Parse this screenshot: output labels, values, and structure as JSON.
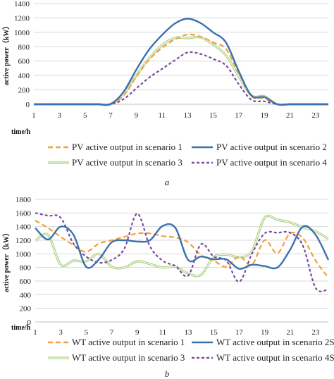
{
  "chart_data": [
    {
      "type": "line",
      "caption": "a",
      "xlabel": "time/h",
      "ylabel": "active power（kW）",
      "xlim": [
        1,
        24
      ],
      "ylim": [
        0,
        1400
      ],
      "x_ticks": [
        1,
        3,
        5,
        7,
        9,
        11,
        13,
        15,
        17,
        19,
        21,
        23
      ],
      "y_ticks": [
        0,
        200,
        400,
        600,
        800,
        1000,
        1200,
        1400
      ],
      "x": [
        1,
        2,
        3,
        4,
        5,
        6,
        7,
        8,
        9,
        10,
        11,
        12,
        13,
        14,
        15,
        16,
        17,
        18,
        19,
        20,
        21,
        22,
        23,
        24
      ],
      "series": [
        {
          "name": "PV active output in scenario 1",
          "color": "#f0a040",
          "dash": "7,4",
          "values": [
            0,
            0,
            0,
            0,
            0,
            0,
            0,
            120,
            380,
            620,
            780,
            900,
            970,
            940,
            860,
            770,
            430,
            110,
            80,
            0,
            0,
            0,
            0,
            0
          ]
        },
        {
          "name": "PV active output in scenario 2",
          "color": "#3a72b0",
          "dash": "",
          "values": [
            0,
            0,
            0,
            0,
            0,
            0,
            5,
            170,
            480,
            760,
            960,
            1120,
            1190,
            1130,
            1000,
            860,
            460,
            120,
            100,
            0,
            0,
            0,
            0,
            0
          ]
        },
        {
          "name": "PV active output in scenario 3",
          "color": "#a6cc7a",
          "dash": "",
          "values": [
            0,
            0,
            0,
            0,
            0,
            0,
            0,
            140,
            400,
            640,
            820,
            920,
            920,
            930,
            830,
            680,
            390,
            120,
            110,
            0,
            0,
            0,
            0,
            0
          ]
        },
        {
          "name": "PV active output in scenario 4",
          "color": "#7a4b9c",
          "dash": "4,3",
          "values": [
            0,
            0,
            0,
            0,
            0,
            0,
            0,
            70,
            220,
            370,
            490,
            610,
            720,
            700,
            630,
            540,
            280,
            60,
            40,
            0,
            0,
            0,
            0,
            0
          ]
        }
      ]
    },
    {
      "type": "line",
      "caption": "b",
      "xlabel": "time/h",
      "ylabel": "active power（kW）",
      "xlim": [
        1,
        24
      ],
      "ylim": [
        0,
        1800
      ],
      "x_ticks": [
        1,
        3,
        5,
        7,
        9,
        11,
        13,
        15,
        17,
        19,
        21,
        23
      ],
      "y_ticks": [
        0,
        200,
        400,
        600,
        800,
        1000,
        1200,
        1400,
        1600,
        1800
      ],
      "x": [
        1,
        2,
        3,
        4,
        5,
        6,
        7,
        8,
        9,
        10,
        11,
        12,
        13,
        14,
        15,
        16,
        17,
        18,
        19,
        20,
        21,
        22,
        23,
        24
      ],
      "series": [
        {
          "name": "WT active output in scenario 1",
          "color": "#f0a040",
          "dash": "7,4",
          "values": [
            1490,
            1380,
            1250,
            1130,
            1030,
            1150,
            1200,
            1250,
            1300,
            1300,
            1260,
            1240,
            1170,
            980,
            900,
            810,
            960,
            840,
            1200,
            1010,
            1300,
            1230,
            900,
            650
          ]
        },
        {
          "name": "WT active output in scenario 2S",
          "color": "#3a72b0",
          "dash": "",
          "values": [
            1380,
            1210,
            1400,
            1280,
            810,
            920,
            1170,
            1200,
            1180,
            1200,
            1410,
            1380,
            910,
            960,
            920,
            920,
            780,
            840,
            820,
            800,
            1060,
            1400,
            1280,
            910
          ]
        },
        {
          "name": "WT active output in scenario 3",
          "color": "#a6cc7a",
          "dash": "",
          "values": [
            1190,
            1280,
            840,
            900,
            890,
            1000,
            810,
            800,
            890,
            850,
            800,
            810,
            710,
            690,
            950,
            990,
            950,
            1040,
            1530,
            1500,
            1460,
            1390,
            1330,
            1220
          ]
        },
        {
          "name": "WT active output in scenario 4S",
          "color": "#7a4b9c",
          "dash": "4,3",
          "values": [
            1600,
            1560,
            1530,
            1150,
            960,
            870,
            910,
            1080,
            1590,
            1110,
            900,
            820,
            680,
            1140,
            960,
            900,
            590,
            1000,
            1300,
            1310,
            1310,
            1120,
            500,
            480
          ]
        }
      ]
    }
  ]
}
